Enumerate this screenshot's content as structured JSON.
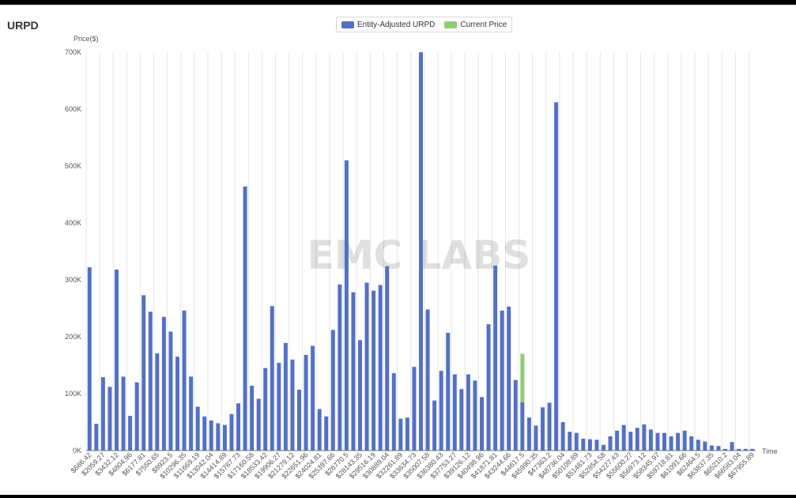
{
  "page": {
    "title": "URPD"
  },
  "legend": [
    {
      "label": "Entity-Adjusted URPD",
      "color": "#5470c6"
    },
    {
      "label": "Current Price",
      "color": "#91cc75"
    }
  ],
  "watermark": "EMC LABS",
  "chart_data": {
    "type": "bar",
    "ylabel": "Price($)",
    "xlabel": "Time",
    "ylim": [
      0,
      700000
    ],
    "yticks": [
      "0K",
      "100K",
      "200K",
      "300K",
      "400K",
      "500K",
      "600K",
      "700K"
    ],
    "grid": "vertical lines at category labels",
    "legend_position": "top-center",
    "x_tick_labels": [
      "$686.42",
      "$2059.27",
      "$3432.12",
      "$4804.96",
      "$6177.81",
      "$7550.65",
      "$8923.5",
      "$10296.35",
      "$11669.19",
      "$13042.04",
      "$14414.89",
      "$15787.73",
      "$17160.58",
      "$18533.42",
      "$19906.27",
      "$21279.12",
      "$22651.96",
      "$24024.81",
      "$25397.66",
      "$26770.5",
      "$28143.35",
      "$29516.19",
      "$30889.04",
      "$32261.89",
      "$33634.73",
      "$35007.58",
      "$36380.43",
      "$37753.27",
      "$39126.12",
      "$40498.96",
      "$41871.81",
      "$43244.66",
      "$44617.5",
      "$45990.35",
      "$47363.2",
      "$48736.04",
      "$50108.89",
      "$51481.73",
      "$52854.58",
      "$54227.43",
      "$55600.27",
      "$56973.12",
      "$58345.97",
      "$59718.81",
      "$61091.66",
      "$62464.5",
      "$63837.35",
      "$65210.2",
      "$66583.04",
      "$67955.89"
    ],
    "series": [
      {
        "name": "Entity-Adjusted URPD",
        "values": [
          322000,
          47000,
          129000,
          112000,
          318000,
          130000,
          61000,
          120000,
          273000,
          244000,
          171000,
          235000,
          209000,
          165000,
          246000,
          130000,
          77000,
          60000,
          53000,
          48000,
          45000,
          64000,
          83000,
          464000,
          114000,
          91000,
          145000,
          254000,
          154000,
          189000,
          160000,
          107000,
          168000,
          184000,
          73000,
          60000,
          212000,
          292000,
          510000,
          278000,
          194000,
          295000,
          281000,
          291000,
          324000,
          136000,
          56000,
          58000,
          147000,
          700000,
          248000,
          88000,
          140000,
          207000,
          134000,
          108000,
          134000,
          123000,
          94000,
          222000,
          325000,
          246000,
          253000,
          124000,
          85000,
          58000,
          44000,
          76000,
          84000,
          612000,
          50000,
          33000,
          31000,
          21000,
          20000,
          19000,
          10000,
          25000,
          35000,
          45000,
          33000,
          40000,
          46000,
          37000,
          31000,
          31000,
          25000,
          31000,
          35000,
          25000,
          19000,
          16000,
          9000,
          8000,
          3000,
          15000,
          3000,
          3000,
          3000
        ]
      },
      {
        "name": "Current Price",
        "values": [
          0,
          0,
          0,
          0,
          0,
          0,
          0,
          0,
          0,
          0,
          0,
          0,
          0,
          0,
          0,
          0,
          0,
          0,
          0,
          0,
          0,
          0,
          0,
          0,
          0,
          0,
          0,
          0,
          0,
          0,
          0,
          0,
          0,
          0,
          0,
          0,
          0,
          0,
          0,
          0,
          0,
          0,
          0,
          0,
          0,
          0,
          0,
          0,
          0,
          0,
          0,
          0,
          0,
          0,
          0,
          0,
          0,
          0,
          0,
          0,
          0,
          0,
          0,
          0,
          85000,
          0,
          0,
          0,
          0,
          0,
          0,
          0,
          0,
          0,
          0,
          0,
          0,
          0,
          0,
          0,
          0,
          0,
          0,
          0,
          0,
          0,
          0,
          0,
          0,
          0,
          0,
          0,
          0,
          0,
          0,
          0,
          0,
          0,
          0
        ]
      }
    ]
  }
}
